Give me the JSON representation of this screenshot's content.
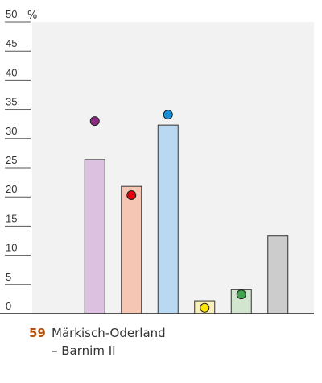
{
  "chart_data": {
    "type": "bar",
    "categories": [
      null,
      null,
      null,
      null,
      null,
      null
    ],
    "values": [
      26.4,
      21.8,
      32.3,
      2.2,
      4.1,
      13.3
    ],
    "colors": [
      "#dcc2e0",
      "#f6c6b5",
      "#b9d8f2",
      "#f9f0bb",
      "#d2e6cf",
      "#cccccc"
    ],
    "previous_values": [
      33.0,
      20.3,
      34.1,
      1.0,
      3.3,
      null
    ],
    "previous_colors": [
      "#8b2a80",
      "#e3000f",
      "#1a8fd8",
      "#ffe600",
      "#3fa34d",
      "#999999"
    ],
    "ylim": [
      0,
      50
    ],
    "yticks": [
      0,
      5,
      10,
      15,
      20,
      25,
      30,
      35,
      40,
      45,
      50
    ],
    "unit": "%",
    "constituency_number": "59",
    "constituency_lines": [
      "Märkisch-Oderland",
      "– Barnim II"
    ]
  }
}
